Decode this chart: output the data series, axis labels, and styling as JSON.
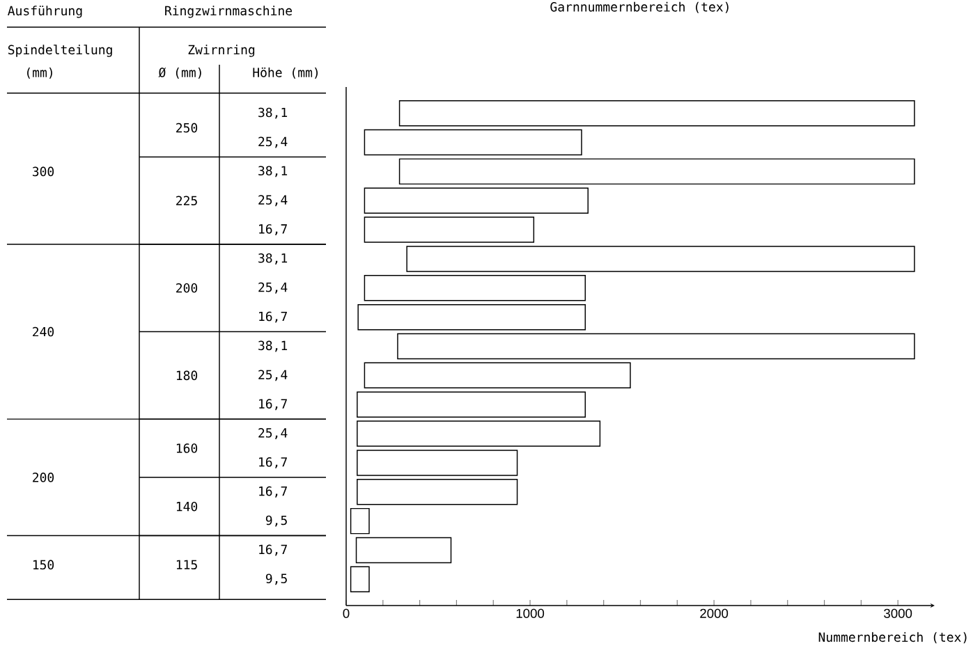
{
  "chart_data": {
    "type": "bar",
    "orientation": "horizontal",
    "title": "Garnnummernbereich (tex)",
    "xlabel": "Nummernbereich (tex)",
    "categories": [
      "38,1",
      "25,4",
      "38,1",
      "25,4",
      "16,7",
      "38,1",
      "25,4",
      "16,7",
      "38,1",
      "25,4",
      "16,7",
      "25,4",
      "16,7",
      "16,7",
      "9,5",
      "16,7",
      "9,5"
    ],
    "base": [
      290,
      100,
      290,
      100,
      100,
      330,
      100,
      65,
      280,
      100,
      60,
      60,
      60,
      60,
      25,
      55,
      25
    ],
    "values": [
      2800,
      1180,
      2800,
      1215,
      920,
      2760,
      1200,
      1235,
      2810,
      1445,
      1240,
      1320,
      870,
      870,
      100,
      515,
      100
    ],
    "color": "#ffffff",
    "xlim": [
      0,
      3200
    ],
    "xticks": [
      0,
      {
        "value": 200,
        "label": null
      },
      {
        "value": 400,
        "label": null
      },
      {
        "value": 600,
        "label": null
      },
      {
        "value": 800,
        "label": null
      },
      1000,
      {
        "value": 1200,
        "label": null
      },
      {
        "value": 1400,
        "label": null
      },
      {
        "value": 1600,
        "label": null
      },
      {
        "value": 1800,
        "label": null
      },
      2000,
      {
        "value": 2200,
        "label": null
      },
      {
        "value": 2400,
        "label": null
      },
      {
        "value": 2600,
        "label": null
      },
      {
        "value": 2800,
        "label": null
      },
      3000
    ],
    "grid": false,
    "annotations": [
      "Ausführung",
      "Ringzwirnmaschine",
      "Spindelteilung",
      "(mm)",
      "Zwirnring",
      "Ø (mm)",
      "Höhe (mm)",
      "300",
      "240",
      "200",
      "150",
      "250",
      "225",
      "200",
      "180",
      "160",
      "140",
      "115"
    ]
  }
}
